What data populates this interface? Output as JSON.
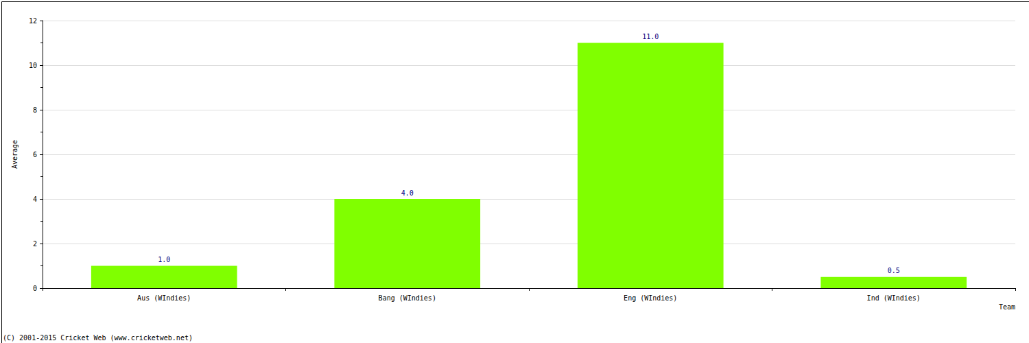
{
  "chart_data": {
    "type": "bar",
    "categories": [
      "Aus (WIndies)",
      "Bang (WIndies)",
      "Eng (WIndies)",
      "Ind (WIndies)"
    ],
    "values": [
      1.0,
      4.0,
      11.0,
      0.5
    ],
    "value_labels": [
      "1.0",
      "4.0",
      "11.0",
      "0.5"
    ],
    "data_labels": true,
    "color": "#80ff00",
    "x_label": "Team",
    "y_label": "Average",
    "ylim": [
      0,
      12
    ],
    "yticks": [
      0,
      2,
      4,
      6,
      8,
      10,
      12
    ],
    "grid": true,
    "annotations": [
      "(C) 2001-2015 Cricket Web (www.cricketweb.net)"
    ]
  }
}
